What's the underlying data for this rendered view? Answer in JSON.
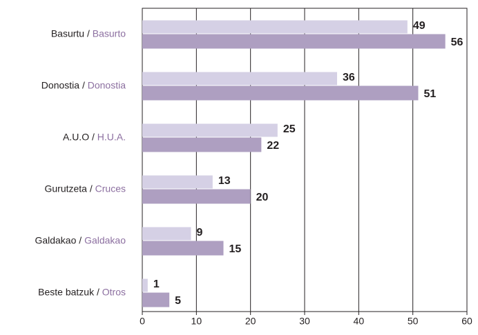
{
  "chart_data": {
    "type": "bar",
    "orientation": "horizontal",
    "categories": [
      [
        "Basurtu",
        "Basurto"
      ],
      [
        "Donostia",
        "Donostia"
      ],
      [
        "A.U.O",
        "H.U.A."
      ],
      [
        "Gurutzeta",
        "Cruces"
      ],
      [
        "Galdakao",
        "Galdakao"
      ],
      [
        "Beste batzuk",
        "Otros"
      ]
    ],
    "label_separator": " / ",
    "label_colors": [
      "#231f20",
      "#8c6fa0"
    ],
    "series": [
      {
        "color": "#d5d0e5",
        "values": [
          49,
          36,
          25,
          13,
          9,
          1
        ]
      },
      {
        "color": "#ae9fc1",
        "values": [
          56,
          51,
          22,
          20,
          15,
          5
        ]
      }
    ],
    "xlim": [
      0,
      60
    ],
    "xticks": [
      0,
      10,
      20,
      30,
      40,
      50,
      60
    ],
    "grid": true
  }
}
